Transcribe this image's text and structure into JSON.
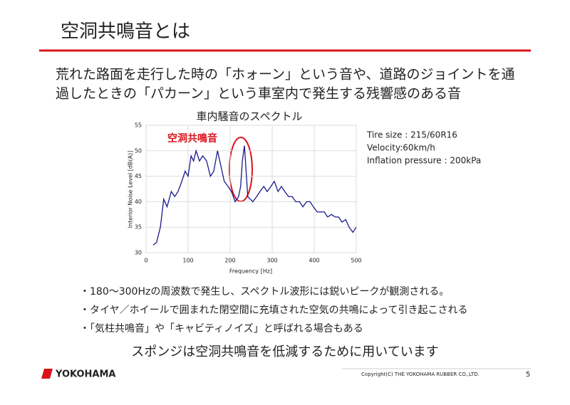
{
  "header": {
    "title": "空洞共鳴音とは"
  },
  "body": {
    "lines": [
      "荒れた路面を走行した時の「ホォーン」という音や、道路のジョイントを通",
      "過したときの「パカーン」という車室内で発生する残響感のある音"
    ]
  },
  "chart_data": {
    "type": "line",
    "title": "車内騒音のスペクトル",
    "x_label": "Frequency [Hz]",
    "y_label": "Interior Noise Level [dB(A)]",
    "annotation": "空洞共鳴音",
    "specs": [
      "Tire size : 215/60R16",
      "Velocity:60km/h",
      "Inflation pressure : 200kPa"
    ],
    "xlim": [
      0,
      500
    ],
    "xticks": [
      0,
      100,
      200,
      300,
      400,
      500
    ],
    "ylim": [
      30,
      55
    ],
    "yticks": [
      30,
      35,
      40,
      45,
      50,
      55
    ],
    "series": [
      {
        "color": "#1a1a8c",
        "x": [
          17,
          25,
          34,
          42,
          50,
          60,
          68,
          76,
          85,
          93,
          100,
          107,
          113,
          119,
          127,
          135,
          144,
          153,
          161,
          170,
          178,
          186,
          195,
          203,
          212,
          220,
          225,
          229,
          234,
          242,
          254,
          263,
          271,
          280,
          288,
          297,
          305,
          314,
          322,
          330,
          339,
          348,
          356,
          365,
          373,
          382,
          390,
          398,
          407,
          415,
          424,
          432,
          441,
          450,
          458,
          466,
          475,
          483,
          492,
          500
        ],
        "values": [
          31.5,
          32,
          35,
          40.5,
          39,
          42,
          41,
          42,
          44,
          46,
          45,
          49,
          48,
          50,
          48,
          49,
          48,
          45,
          46,
          50,
          47,
          44,
          43,
          42,
          40,
          41,
          43,
          48,
          51,
          41,
          40,
          41,
          42,
          43,
          42,
          43,
          44,
          42,
          43,
          42,
          41,
          41,
          40,
          40,
          39,
          40,
          40,
          39,
          38,
          38,
          38,
          37,
          37.5,
          37,
          37,
          36,
          36.5,
          35,
          34,
          35
        ]
      }
    ]
  },
  "bullets": [
    "・180～300Hzの周波数で発生し、スペクトル波形には鋭いピークが観測される。",
    "・タイヤ／ホイールで囲まれた閉空間に充填された空気の共鳴によって引き起こされる",
    "・「気柱共鳴音」や「キャビティノイズ」と呼ばれる場合もある"
  ],
  "conclusion": "スポンジは空洞共鳴音を低減するために用いています",
  "footer": {
    "logo": "YOKOHAMA",
    "copyright": "Copyright(C) THE YOKOHAMA RUBBER CO.,LTD.",
    "page": "5"
  }
}
